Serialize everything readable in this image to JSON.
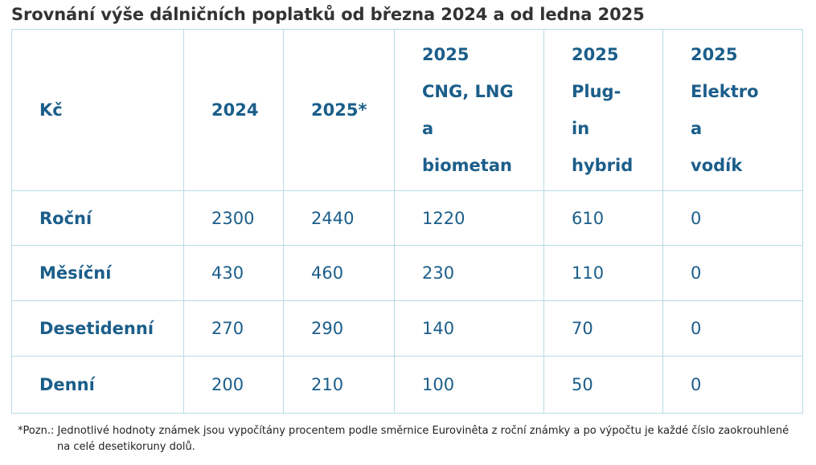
{
  "title": "Srovnání výše dálničních poplatků od března 2024 a od ledna 2025",
  "table": {
    "headers": [
      [
        "Kč"
      ],
      [
        "2024"
      ],
      [
        "2025*"
      ],
      [
        "2025",
        "CNG, LNG",
        "a",
        "biometan"
      ],
      [
        "2025",
        "Plug-",
        "in",
        "hybrid"
      ],
      [
        "2025",
        "Elektro",
        "a",
        "vodík"
      ]
    ],
    "rows": [
      [
        "Roční",
        "2300",
        "2440",
        "1220",
        "610",
        "0"
      ],
      [
        "Měsíční",
        "430",
        "460",
        "230",
        "110",
        "0"
      ],
      [
        "Desetidenní",
        "270",
        "290",
        "140",
        "70",
        "0"
      ],
      [
        "Denní",
        "200",
        "210",
        "100",
        "50",
        "0"
      ]
    ]
  },
  "note": {
    "line1": "*Pozn.: Jednotlivé hodnoty známek jsou vypočítány procentem podle směrnice Eurovinêta z roční známky a po výpočtu je každé číslo zaokrouhlené",
    "line2": "na celé desetikoruny dolů."
  }
}
